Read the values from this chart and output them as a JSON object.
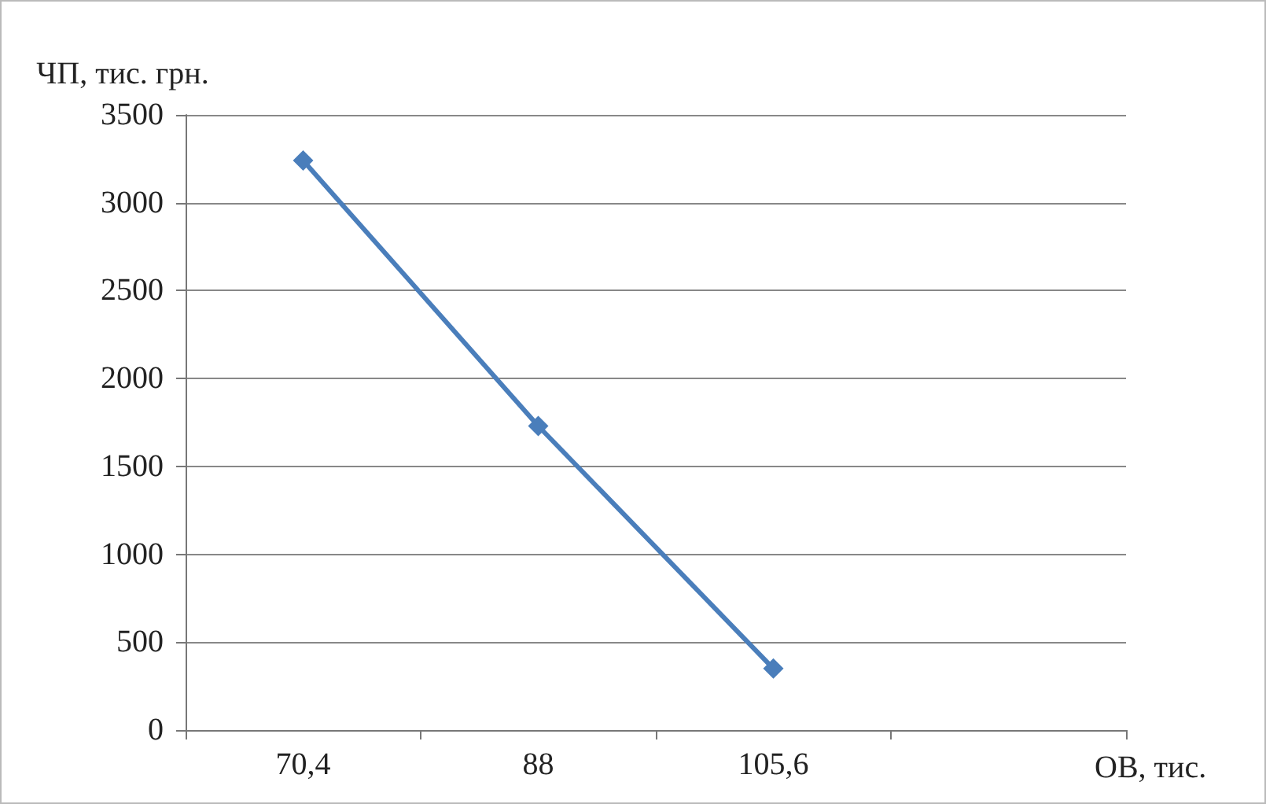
{
  "chart_data": {
    "type": "line",
    "xlabel": "ОВ, тис.",
    "ylabel": "ЧП, тис. грн.",
    "categories": [
      "70,4",
      "88",
      "105,6",
      null
    ],
    "series": [
      {
        "color": "#4a7ebb",
        "values": [
          3240,
          1730,
          350,
          null
        ]
      }
    ],
    "ylim": [
      0,
      3500
    ],
    "yticks": [
      0,
      500,
      1000,
      1500,
      2000,
      2500,
      3000,
      3500
    ],
    "grid": "y",
    "marker": "diamond",
    "line_style": "solid"
  }
}
